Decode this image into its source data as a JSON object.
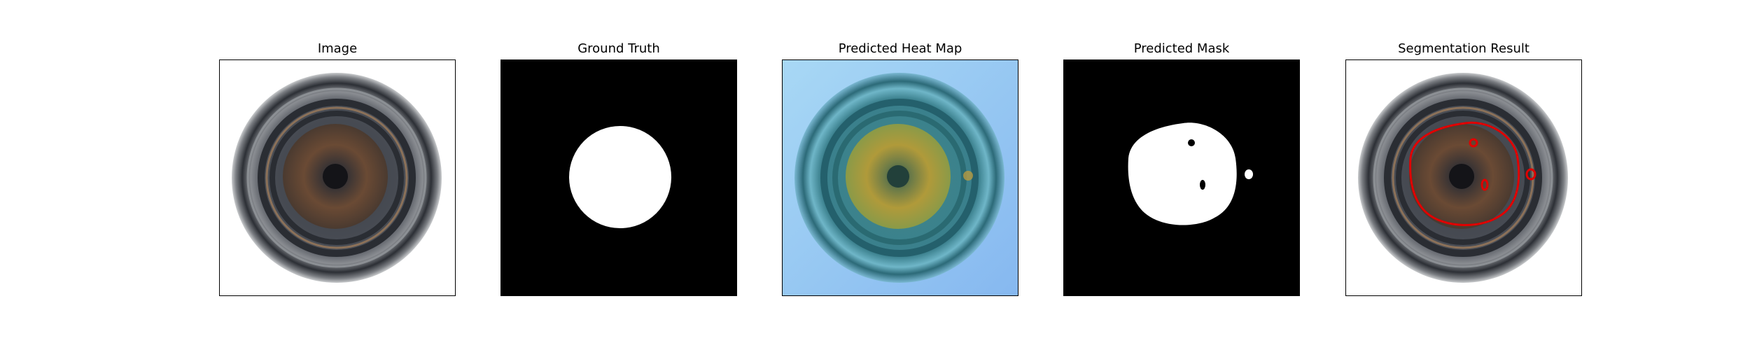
{
  "panels": [
    {
      "id": "image",
      "title": "Image"
    },
    {
      "id": "ground-truth",
      "title": "Ground Truth"
    },
    {
      "id": "heatmap",
      "title": "Predicted Heat Map"
    },
    {
      "id": "predicted-mask",
      "title": "Predicted Mask"
    },
    {
      "id": "segmentation",
      "title": "Segmentation Result"
    }
  ],
  "colors": {
    "background": "#ffffff",
    "mask_background": "#000000",
    "mask_foreground": "#ffffff",
    "contour": "#e00000",
    "heat_cool": "#8ec3f5",
    "heat_warm": "#c8b040"
  }
}
